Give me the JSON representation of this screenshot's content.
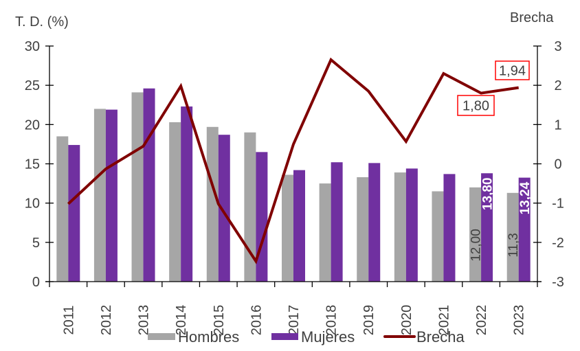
{
  "chart_data": {
    "type": "bar+line",
    "title": "",
    "categories": [
      "2011",
      "2012",
      "2013",
      "2014",
      "2015",
      "2016",
      "2017",
      "2018",
      "2019",
      "2020",
      "2021",
      "2022",
      "2023"
    ],
    "series": [
      {
        "name": "Hombres",
        "type": "bar",
        "axis": "left",
        "color": "#A6A6A6",
        "values": [
          18.5,
          22.0,
          24.1,
          20.3,
          19.7,
          19.0,
          13.6,
          12.5,
          13.3,
          13.9,
          11.5,
          12.0,
          11.3
        ]
      },
      {
        "name": "Mujeres",
        "type": "bar",
        "axis": "left",
        "color": "#7030A0",
        "values": [
          17.4,
          21.9,
          24.6,
          22.3,
          18.7,
          16.5,
          14.2,
          15.2,
          15.1,
          14.4,
          13.7,
          13.8,
          13.24
        ]
      },
      {
        "name": "Brecha",
        "type": "line",
        "axis": "right",
        "color": "#800000",
        "values": [
          -1.02,
          -0.13,
          0.45,
          1.98,
          -1.02,
          -2.48,
          0.5,
          2.65,
          1.85,
          0.57,
          2.3,
          1.8,
          1.94
        ]
      }
    ],
    "ylabel": "T. D. (%)",
    "ylim": [
      0,
      30
    ],
    "yticks": [
      "0",
      "5",
      "10",
      "15",
      "20",
      "25",
      "30"
    ],
    "y2label": "Brecha",
    "y2lim": [
      -3,
      3
    ],
    "y2ticks": [
      "-3",
      "-2",
      "-1",
      "0",
      "1",
      "2",
      "3"
    ],
    "xlabel": "",
    "grid": false,
    "legend_position": "bottom",
    "annotations": [
      {
        "series": "Hombres",
        "category": "2022",
        "text": "12,00"
      },
      {
        "series": "Mujeres",
        "category": "2022",
        "text": "13,80"
      },
      {
        "series": "Hombres",
        "category": "2023",
        "text": "11,3"
      },
      {
        "series": "Mujeres",
        "category": "2023",
        "text": "13,24"
      },
      {
        "series": "Brecha",
        "category": "2022",
        "text": "1,80",
        "boxed": true,
        "box_color": "#FF0000"
      },
      {
        "series": "Brecha",
        "category": "2023",
        "text": "1,94",
        "boxed": true,
        "box_color": "#FF0000"
      }
    ]
  },
  "legend": {
    "items": [
      {
        "label": "Hombres",
        "color": "#A6A6A6",
        "kind": "bar"
      },
      {
        "label": "Mujeres",
        "color": "#7030A0",
        "kind": "bar"
      },
      {
        "label": "Brecha",
        "color": "#800000",
        "kind": "line"
      }
    ]
  },
  "axes": {
    "left_title": "T. D. (%)",
    "right_title": "Brecha"
  }
}
